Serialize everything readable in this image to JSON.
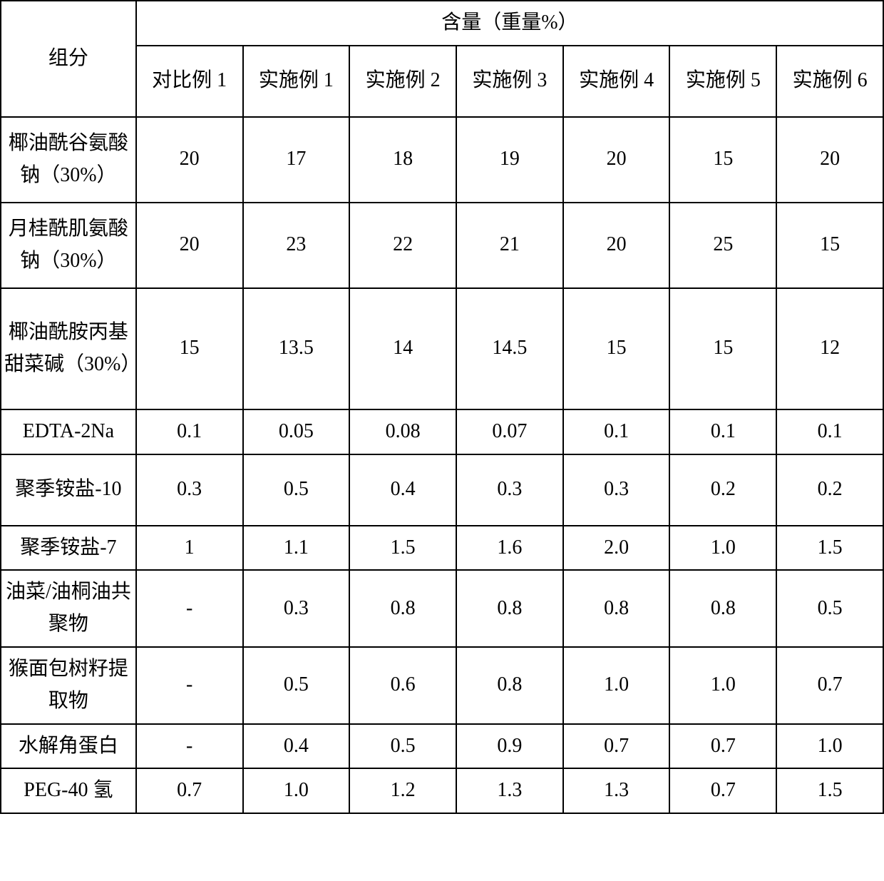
{
  "table": {
    "header": {
      "component_label": "组分",
      "content_label": "含量（重量%）"
    },
    "columns": [
      "对比例 1",
      "实施例 1",
      "实施例 2",
      "实施例 3",
      "实施例 4",
      "实施例 5",
      "实施例 6"
    ],
    "rows": [
      {
        "label": "椰油酰谷氨酸钠（30%）",
        "values": [
          "20",
          "17",
          "18",
          "19",
          "20",
          "15",
          "20"
        ],
        "height": "tall"
      },
      {
        "label": "月桂酰肌氨酸钠（30%）",
        "values": [
          "20",
          "23",
          "22",
          "21",
          "20",
          "25",
          "15"
        ],
        "height": "tall"
      },
      {
        "label": "椰油酰胺丙基甜菜碱（30%）",
        "values": [
          "15",
          "13.5",
          "14",
          "14.5",
          "15",
          "15",
          "12"
        ],
        "height": "xtall"
      },
      {
        "label": "EDTA-2Na",
        "values": [
          "0.1",
          "0.05",
          "0.08",
          "0.07",
          "0.1",
          "0.1",
          "0.1"
        ],
        "height": "short"
      },
      {
        "label": "聚季铵盐-10",
        "values": [
          "0.3",
          "0.5",
          "0.4",
          "0.3",
          "0.3",
          "0.2",
          "0.2"
        ],
        "height": "med"
      },
      {
        "label": "聚季铵盐-7",
        "values": [
          "1",
          "1.1",
          "1.5",
          "1.6",
          "2.0",
          "1.0",
          "1.5"
        ],
        "height": "short"
      },
      {
        "label": "油菜/油桐油共聚物",
        "values": [
          "-",
          "0.3",
          "0.8",
          "0.8",
          "0.8",
          "0.8",
          "0.5"
        ],
        "height": "med"
      },
      {
        "label": "猴面包树籽提取物",
        "values": [
          "-",
          "0.5",
          "0.6",
          "0.8",
          "1.0",
          "1.0",
          "0.7"
        ],
        "height": "med"
      },
      {
        "label": "水解角蛋白",
        "values": [
          "-",
          "0.4",
          "0.5",
          "0.9",
          "0.7",
          "0.7",
          "1.0"
        ],
        "height": "short"
      },
      {
        "label": "PEG-40 氢",
        "values": [
          "0.7",
          "1.0",
          "1.2",
          "1.3",
          "1.3",
          "0.7",
          "1.5"
        ],
        "height": "short"
      }
    ],
    "border_color": "#000000",
    "background_color": "#ffffff",
    "font_size": 28,
    "font_family": "SimSun",
    "col_component_width": 190,
    "col_data_width": 150
  }
}
